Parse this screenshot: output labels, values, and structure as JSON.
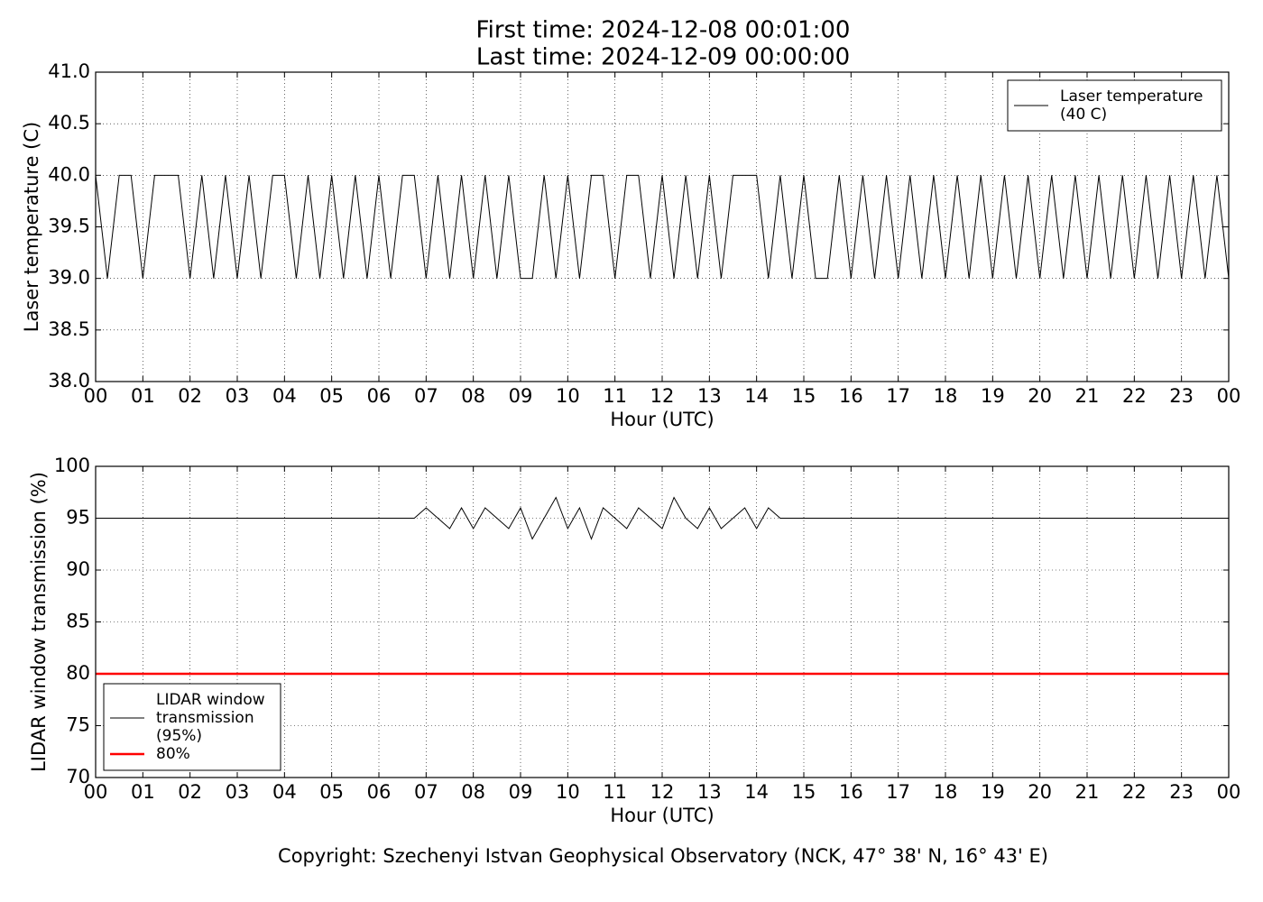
{
  "chart_data": [
    {
      "type": "line",
      "title": "First time: 2024-12-08 00:01:00",
      "subtitle": "Last time: 2024-12-09 00:00:00",
      "xlabel": "Hour (UTC)",
      "ylabel": "Laser temperature (C)",
      "xlim": [
        0,
        24
      ],
      "ylim": [
        38,
        41
      ],
      "xticks": [
        {
          "value": 0,
          "label": "00"
        },
        {
          "value": 1,
          "label": "01"
        },
        {
          "value": 2,
          "label": "02"
        },
        {
          "value": 3,
          "label": "03"
        },
        {
          "value": 4,
          "label": "04"
        },
        {
          "value": 5,
          "label": "05"
        },
        {
          "value": 6,
          "label": "06"
        },
        {
          "value": 7,
          "label": "07"
        },
        {
          "value": 8,
          "label": "08"
        },
        {
          "value": 9,
          "label": "09"
        },
        {
          "value": 10,
          "label": "10"
        },
        {
          "value": 11,
          "label": "11"
        },
        {
          "value": 12,
          "label": "12"
        },
        {
          "value": 13,
          "label": "13"
        },
        {
          "value": 14,
          "label": "14"
        },
        {
          "value": 15,
          "label": "15"
        },
        {
          "value": 16,
          "label": "16"
        },
        {
          "value": 17,
          "label": "17"
        },
        {
          "value": 18,
          "label": "18"
        },
        {
          "value": 19,
          "label": "19"
        },
        {
          "value": 20,
          "label": "20"
        },
        {
          "value": 21,
          "label": "21"
        },
        {
          "value": 22,
          "label": "22"
        },
        {
          "value": 23,
          "label": "23"
        },
        {
          "value": 24,
          "label": "00"
        }
      ],
      "yticks": [
        {
          "value": 38,
          "label": "38.0"
        },
        38.5,
        {
          "value": 39,
          "label": "39.0"
        },
        39.5,
        {
          "value": 40,
          "label": "40.0"
        },
        40.5,
        {
          "value": 41,
          "label": "41.0"
        }
      ],
      "grid": true,
      "legend": "upper right",
      "x": [
        0,
        0.25,
        0.5,
        0.75,
        1,
        1.25,
        1.5,
        1.75,
        2,
        2.25,
        2.5,
        2.75,
        3,
        3.25,
        3.5,
        3.75,
        4,
        4.25,
        4.5,
        4.75,
        5,
        5.25,
        5.5,
        5.75,
        6,
        6.25,
        6.5,
        6.75,
        7,
        7.25,
        7.5,
        7.75,
        8,
        8.25,
        8.5,
        8.75,
        9,
        9.25,
        9.5,
        9.75,
        10,
        10.25,
        10.5,
        10.75,
        11,
        11.25,
        11.5,
        11.75,
        12,
        12.25,
        12.5,
        12.75,
        13,
        13.25,
        13.5,
        13.75,
        14,
        14.25,
        14.5,
        14.75,
        15,
        15.25,
        15.5,
        15.75,
        16,
        16.25,
        16.5,
        16.75,
        17,
        17.25,
        17.5,
        17.75,
        18,
        18.25,
        18.5,
        18.75,
        19,
        19.25,
        19.5,
        19.75,
        20,
        20.25,
        20.5,
        20.75,
        21,
        21.25,
        21.5,
        21.75,
        22,
        22.25,
        22.5,
        22.75,
        23,
        23.25,
        23.5,
        23.75,
        24
      ],
      "series": [
        {
          "name": "Laser temperature\n(40 C)",
          "color": "#000000",
          "width": 1,
          "values": [
            40,
            39,
            40,
            40,
            39,
            40,
            40,
            40,
            39,
            40,
            39,
            40,
            39,
            40,
            39,
            40,
            40,
            39,
            40,
            39,
            40,
            39,
            40,
            39,
            40,
            39,
            40,
            40,
            39,
            40,
            39,
            40,
            39,
            40,
            39,
            40,
            39,
            39,
            40,
            39,
            40,
            39,
            40,
            40,
            39,
            40,
            40,
            39,
            40,
            39,
            40,
            39,
            40,
            39,
            40,
            40,
            40,
            39,
            40,
            39,
            40,
            39,
            39,
            40,
            39,
            40,
            39,
            40,
            39,
            40,
            39,
            40,
            39,
            40,
            39,
            40,
            39,
            40,
            39,
            40,
            39,
            40,
            39,
            40,
            39,
            40,
            39,
            40,
            39,
            40,
            39,
            40,
            39,
            40,
            39,
            40,
            39
          ]
        }
      ]
    },
    {
      "type": "line",
      "xlabel": "Hour (UTC)",
      "ylabel": "LIDAR window transmission (%)",
      "xlim": [
        0,
        24
      ],
      "ylim": [
        70,
        100
      ],
      "xticks": [
        {
          "value": 0,
          "label": "00"
        },
        {
          "value": 1,
          "label": "01"
        },
        {
          "value": 2,
          "label": "02"
        },
        {
          "value": 3,
          "label": "03"
        },
        {
          "value": 4,
          "label": "04"
        },
        {
          "value": 5,
          "label": "05"
        },
        {
          "value": 6,
          "label": "06"
        },
        {
          "value": 7,
          "label": "07"
        },
        {
          "value": 8,
          "label": "08"
        },
        {
          "value": 9,
          "label": "09"
        },
        {
          "value": 10,
          "label": "10"
        },
        {
          "value": 11,
          "label": "11"
        },
        {
          "value": 12,
          "label": "12"
        },
        {
          "value": 13,
          "label": "13"
        },
        {
          "value": 14,
          "label": "14"
        },
        {
          "value": 15,
          "label": "15"
        },
        {
          "value": 16,
          "label": "16"
        },
        {
          "value": 17,
          "label": "17"
        },
        {
          "value": 18,
          "label": "18"
        },
        {
          "value": 19,
          "label": "19"
        },
        {
          "value": 20,
          "label": "20"
        },
        {
          "value": 21,
          "label": "21"
        },
        {
          "value": 22,
          "label": "22"
        },
        {
          "value": 23,
          "label": "23"
        },
        {
          "value": 24,
          "label": "00"
        }
      ],
      "yticks": [
        70,
        75,
        80,
        85,
        90,
        95,
        100
      ],
      "grid": true,
      "legend": "lower left",
      "x": [
        0,
        0.25,
        0.5,
        0.75,
        1,
        1.25,
        1.5,
        1.75,
        2,
        2.25,
        2.5,
        2.75,
        3,
        3.25,
        3.5,
        3.75,
        4,
        4.25,
        4.5,
        4.75,
        5,
        5.25,
        5.5,
        5.75,
        6,
        6.25,
        6.5,
        6.75,
        7,
        7.25,
        7.5,
        7.75,
        8,
        8.25,
        8.5,
        8.75,
        9,
        9.25,
        9.5,
        9.75,
        10,
        10.25,
        10.5,
        10.75,
        11,
        11.25,
        11.5,
        11.75,
        12,
        12.25,
        12.5,
        12.75,
        13,
        13.25,
        13.5,
        13.75,
        14,
        14.25,
        14.5,
        14.75,
        15,
        15.25,
        15.5,
        15.75,
        16,
        16.25,
        16.5,
        16.75,
        17,
        17.25,
        17.5,
        17.75,
        18,
        18.25,
        18.5,
        18.75,
        19,
        19.25,
        19.5,
        19.75,
        20,
        20.25,
        20.5,
        20.75,
        21,
        21.25,
        21.5,
        21.75,
        22,
        22.25,
        22.5,
        22.75,
        23,
        23.25,
        23.5,
        23.75,
        24
      ],
      "series": [
        {
          "name": "LIDAR window\ntransmission\n(95%)",
          "color": "#000000",
          "width": 1,
          "values": [
            95,
            95,
            95,
            95,
            95,
            95,
            95,
            95,
            95,
            95,
            95,
            95,
            95,
            95,
            95,
            95,
            95,
            95,
            95,
            95,
            95,
            95,
            95,
            95,
            95,
            95,
            95,
            95,
            96,
            95,
            94,
            96,
            94,
            96,
            95,
            94,
            96,
            93,
            95,
            97,
            94,
            96,
            93,
            96,
            95,
            94,
            96,
            95,
            94,
            97,
            95,
            94,
            96,
            94,
            95,
            96,
            94,
            96,
            95,
            95,
            95,
            95,
            95,
            95,
            95,
            95,
            95,
            95,
            95,
            95,
            95,
            95,
            95,
            95,
            95,
            95,
            95,
            95,
            95,
            95,
            95,
            95,
            95,
            95,
            95,
            95,
            95,
            95,
            95,
            95,
            95,
            95,
            95,
            95,
            95,
            95,
            95
          ]
        },
        {
          "name": "80%",
          "color": "#ff0000",
          "width": 2.5,
          "x": [
            0,
            24
          ],
          "values": [
            80,
            80
          ]
        }
      ]
    }
  ],
  "footer": "Copyright: Szechenyi Istvan Geophysical Observatory (NCK, 47° 38' N, 16° 43' E)"
}
